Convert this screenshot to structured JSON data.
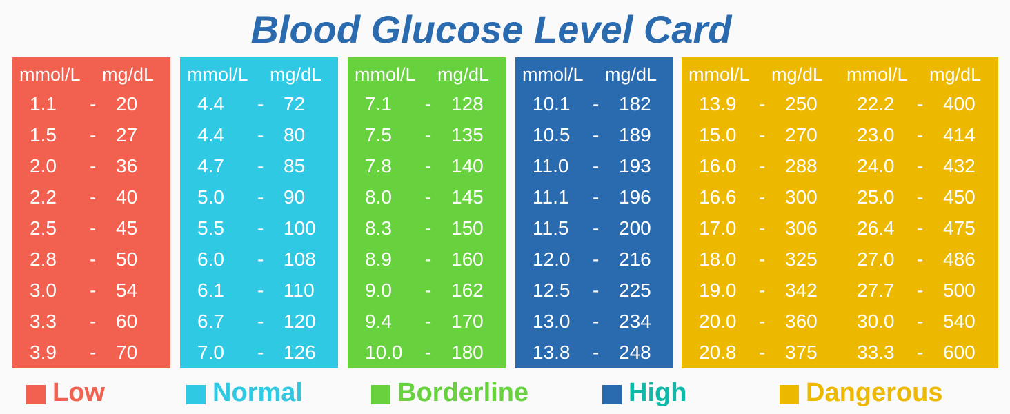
{
  "title": "Blood Glucose Level Card",
  "colors": {
    "low": "#f2604f",
    "normal": "#30c9e3",
    "borderline": "#67d23e",
    "high": "#2a6aae",
    "high_label": "#10b8a8",
    "dangerous": "#edb900"
  },
  "legend": [
    {
      "label": "Low"
    },
    {
      "label": "Normal"
    },
    {
      "label": "Borderline"
    },
    {
      "label": "High"
    },
    {
      "label": "Dangerous"
    }
  ],
  "chart_data": {
    "type": "table",
    "title": "Blood Glucose Level Card",
    "columns": [
      "mmol/L",
      "mg/dL"
    ],
    "categories": [
      "Low",
      "Normal",
      "Borderline",
      "High",
      "Dangerous"
    ],
    "series": [
      {
        "name": "Low",
        "rows": [
          [
            "1.1",
            "20"
          ],
          [
            "1.5",
            "27"
          ],
          [
            "2.0",
            "36"
          ],
          [
            "2.2",
            "40"
          ],
          [
            "2.5",
            "45"
          ],
          [
            "2.8",
            "50"
          ],
          [
            "3.0",
            "54"
          ],
          [
            "3.3",
            "60"
          ],
          [
            "3.9",
            "70"
          ]
        ]
      },
      {
        "name": "Normal",
        "rows": [
          [
            "4.4",
            "72"
          ],
          [
            "4.4",
            "80"
          ],
          [
            "4.7",
            "85"
          ],
          [
            "5.0",
            "90"
          ],
          [
            "5.5",
            "100"
          ],
          [
            "6.0",
            "108"
          ],
          [
            "6.1",
            "110"
          ],
          [
            "6.7",
            "120"
          ],
          [
            "7.0",
            "126"
          ]
        ]
      },
      {
        "name": "Borderline",
        "rows": [
          [
            "7.1",
            "128"
          ],
          [
            "7.5",
            "135"
          ],
          [
            "7.8",
            "140"
          ],
          [
            "8.0",
            "145"
          ],
          [
            "8.3",
            "150"
          ],
          [
            "8.9",
            "160"
          ],
          [
            "9.0",
            "162"
          ],
          [
            "9.4",
            "170"
          ],
          [
            "10.0",
            "180"
          ]
        ]
      },
      {
        "name": "High",
        "rows": [
          [
            "10.1",
            "182"
          ],
          [
            "10.5",
            "189"
          ],
          [
            "11.0",
            "193"
          ],
          [
            "11.1",
            "196"
          ],
          [
            "11.5",
            "200"
          ],
          [
            "12.0",
            "216"
          ],
          [
            "12.5",
            "225"
          ],
          [
            "13.0",
            "234"
          ],
          [
            "13.8",
            "248"
          ]
        ]
      },
      {
        "name": "Dangerous",
        "rows": [
          [
            "13.9",
            "250"
          ],
          [
            "15.0",
            "270"
          ],
          [
            "16.0",
            "288"
          ],
          [
            "16.6",
            "300"
          ],
          [
            "17.0",
            "306"
          ],
          [
            "18.0",
            "325"
          ],
          [
            "19.0",
            "342"
          ],
          [
            "20.0",
            "360"
          ],
          [
            "20.8",
            "375"
          ],
          [
            "22.2",
            "400"
          ],
          [
            "23.0",
            "414"
          ],
          [
            "24.0",
            "432"
          ],
          [
            "25.0",
            "450"
          ],
          [
            "26.4",
            "475"
          ],
          [
            "27.0",
            "486"
          ],
          [
            "27.7",
            "500"
          ],
          [
            "30.0",
            "540"
          ],
          [
            "33.3",
            "600"
          ]
        ]
      }
    ]
  },
  "labels": {
    "mmol": "mmol/L",
    "mg": "mg/dL",
    "dash": "-"
  }
}
